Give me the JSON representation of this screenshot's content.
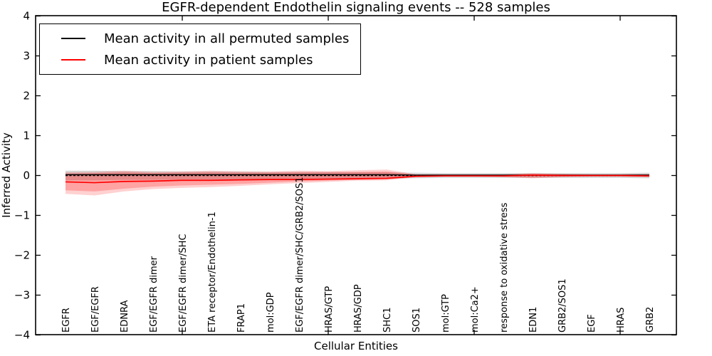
{
  "chart_data": {
    "type": "line",
    "title": "EGFR-dependent Endothelin signaling events -- 528 samples",
    "xlabel": "Cellular Entities",
    "ylabel": "Inferred Activity",
    "ylim": [
      -4,
      4
    ],
    "yticks": [
      4,
      3,
      2,
      1,
      0,
      -1,
      -2,
      -3,
      -4
    ],
    "xtick_marked_positions": [
      5,
      10,
      15,
      20
    ],
    "grid": false,
    "legend_position": "upper-left",
    "background_color": "#ffffff",
    "zero_line": {
      "y": 0,
      "style": "dashed",
      "color": "#000000"
    },
    "categories": [
      "EGFR",
      "EGF/EGFR",
      "EDNRA",
      "EGF/EGFR dimer",
      "EGF/EGFR dimer/SHC",
      "ETA receptor/Endothelin-1",
      "FRAP1",
      "mol:GDP",
      "EGF/EGFR dimer/SHC/GRB2/SOS1",
      "HRAS/GTP",
      "HRAS/GDP",
      "SHC1",
      "SOS1",
      "mol:GTP",
      "mol:Ca2+",
      "response to oxidative stress",
      "EDN1",
      "GRB2/SOS1",
      "EGF",
      "HRAS",
      "GRB2"
    ],
    "series": [
      {
        "name": "Mean activity in all permuted samples",
        "color": "#000000",
        "style": "solid",
        "values": [
          0.02,
          0.02,
          0.02,
          0.02,
          0.02,
          0.02,
          0.02,
          0.02,
          0.02,
          0.02,
          0.02,
          0.02,
          0.01,
          0.01,
          0.01,
          0.01,
          0.01,
          0.01,
          0.01,
          0.01,
          0.01
        ]
      },
      {
        "name": "Mean activity in patient samples",
        "color": "#ff0000",
        "style": "solid",
        "values": [
          -0.16,
          -0.18,
          -0.15,
          -0.14,
          -0.12,
          -0.12,
          -0.11,
          -0.1,
          -0.1,
          -0.09,
          -0.08,
          -0.07,
          -0.02,
          -0.01,
          -0.01,
          -0.01,
          0.01,
          0.0,
          0.0,
          0.0,
          -0.01
        ]
      }
    ],
    "bands": [
      {
        "name": "permuted-samples-spread",
        "color": "#000000",
        "opacity": 0.16,
        "upper": [
          0.12,
          0.12,
          0.11,
          0.11,
          0.1,
          0.1,
          0.1,
          0.09,
          0.09,
          0.09,
          0.08,
          0.08,
          0.07,
          0.06,
          0.06,
          0.06,
          0.06,
          0.06,
          0.06,
          0.06,
          0.07
        ],
        "lower": [
          -0.12,
          -0.12,
          -0.11,
          -0.11,
          -0.1,
          -0.1,
          -0.1,
          -0.09,
          -0.09,
          -0.09,
          -0.08,
          -0.08,
          -0.07,
          -0.06,
          -0.06,
          -0.06,
          -0.06,
          -0.06,
          -0.06,
          -0.06,
          -0.07
        ]
      },
      {
        "name": "patient-samples-spread-outer",
        "color": "#ff0000",
        "opacity": 0.18,
        "upper": [
          0.08,
          0.09,
          0.12,
          0.09,
          0.1,
          0.12,
          0.1,
          0.1,
          0.12,
          0.11,
          0.13,
          0.15,
          0.03,
          0.03,
          0.03,
          0.03,
          0.06,
          0.04,
          0.03,
          0.03,
          0.04
        ],
        "lower": [
          -0.46,
          -0.5,
          -0.4,
          -0.34,
          -0.31,
          -0.29,
          -0.26,
          -0.22,
          -0.19,
          -0.16,
          -0.13,
          -0.12,
          -0.04,
          -0.03,
          -0.03,
          -0.04,
          -0.07,
          -0.04,
          -0.03,
          -0.03,
          -0.04
        ]
      },
      {
        "name": "patient-samples-spread-inner",
        "color": "#ff0000",
        "opacity": 0.22,
        "upper": [
          0.05,
          0.06,
          0.08,
          0.06,
          0.07,
          0.08,
          0.07,
          0.07,
          0.08,
          0.08,
          0.09,
          0.1,
          0.02,
          0.02,
          0.02,
          0.02,
          0.04,
          0.03,
          0.02,
          0.02,
          0.03
        ],
        "lower": [
          -0.37,
          -0.4,
          -0.33,
          -0.28,
          -0.25,
          -0.23,
          -0.21,
          -0.18,
          -0.15,
          -0.13,
          -0.11,
          -0.1,
          -0.03,
          -0.02,
          -0.02,
          -0.03,
          -0.05,
          -0.03,
          -0.02,
          -0.02,
          -0.03
        ]
      }
    ]
  }
}
